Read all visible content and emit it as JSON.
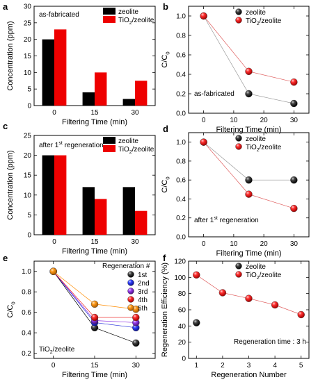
{
  "colors": {
    "zeolite": "#000000",
    "tio2": "#ee0000",
    "link_zeolite": "#999999",
    "link_tio2": "#e06060",
    "regen_1st": "#000000",
    "regen_2nd": "#1f2bd8",
    "regen_3rd": "#8a2be2",
    "regen_4th": "#ee1b1b",
    "regen_5th": "#ff8c00"
  },
  "chart_data": [
    {
      "panel": "a",
      "type": "bar",
      "annotation": "as-fabricated",
      "xlabel": "Filtering Time (min)",
      "ylabel": "Concentration (ppm)",
      "categories": [
        "0",
        "15",
        "30"
      ],
      "ylim": [
        0,
        30
      ],
      "yticks": [
        "0",
        "5",
        "10",
        "15",
        "20",
        "25",
        "30"
      ],
      "legend_position": "top-right",
      "series": [
        {
          "key": "zeolite",
          "name": "zeolite",
          "values": [
            20,
            4,
            2
          ]
        },
        {
          "key": "tio2",
          "name": "TiO2/zeolite",
          "name_main": "TiO",
          "name_sub": "2",
          "name_rest": "/zeolite",
          "values": [
            23,
            10,
            7.5
          ]
        }
      ]
    },
    {
      "panel": "b",
      "type": "scatter",
      "annotation": "as-fabricated",
      "xlabel": "Filtering Time (min)",
      "ylabel": "C/C0",
      "ylabel_main": "C/C",
      "ylabel_sub": "0",
      "x": [
        0,
        15,
        30
      ],
      "xticks": [
        "0",
        "10",
        "20",
        "30"
      ],
      "xlim": [
        -5,
        35
      ],
      "ylim": [
        0,
        1.1
      ],
      "yticks": [
        "0.0",
        "0.2",
        "0.4",
        "0.6",
        "0.8",
        "1.0"
      ],
      "legend_position": "top-right",
      "series": [
        {
          "key": "zeolite",
          "name": "zeolite",
          "values": [
            1.0,
            0.2,
            0.1
          ]
        },
        {
          "key": "tio2",
          "name": "TiO2/zeolite",
          "name_main": "TiO",
          "name_sub": "2",
          "name_rest": "/zeolite",
          "values": [
            1.0,
            0.43,
            0.32
          ]
        }
      ]
    },
    {
      "panel": "c",
      "type": "bar",
      "annotation": "after 1st regeneration",
      "annotation_main": "after 1",
      "annotation_sup": "st",
      "annotation_rest": " regeneration",
      "xlabel": "Filtering Time (min)",
      "ylabel": "Concentration (ppm)",
      "categories": [
        "0",
        "15",
        "30"
      ],
      "ylim": [
        0,
        25
      ],
      "yticks": [
        "0",
        "5",
        "10",
        "15",
        "20",
        "25"
      ],
      "legend_position": "top-right",
      "series": [
        {
          "key": "zeolite",
          "name": "zeolite",
          "values": [
            20,
            12,
            12
          ]
        },
        {
          "key": "tio2",
          "name": "TiO2/zeolite",
          "name_main": "TiO",
          "name_sub": "2",
          "name_rest": "/zeolite",
          "values": [
            20,
            9,
            6
          ]
        }
      ]
    },
    {
      "panel": "d",
      "type": "scatter",
      "annotation": "after 1st regeneration",
      "annotation_main": "after 1",
      "annotation_sup": "st",
      "annotation_rest": " regeneration",
      "xlabel": "Filtering Time (min)",
      "ylabel": "C/C0",
      "ylabel_main": "C/C",
      "ylabel_sub": "0",
      "x": [
        0,
        15,
        30
      ],
      "xticks": [
        "0",
        "10",
        "20",
        "30"
      ],
      "xlim": [
        -5,
        35
      ],
      "ylim": [
        0,
        1.1
      ],
      "yticks": [
        "0.0",
        "0.2",
        "0.4",
        "0.6",
        "0.8",
        "1.0"
      ],
      "legend_position": "top-right",
      "series": [
        {
          "key": "zeolite",
          "name": "zeolite",
          "values": [
            1.0,
            0.6,
            0.6
          ]
        },
        {
          "key": "tio2",
          "name": "TiO2/zeolite",
          "name_main": "TiO",
          "name_sub": "2",
          "name_rest": "/zeolite",
          "values": [
            1.0,
            0.45,
            0.3
          ]
        }
      ]
    },
    {
      "panel": "e",
      "type": "scatter",
      "annotation": "TiO2/zeolite",
      "annotation_main": "TiO",
      "annotation_sub": "2",
      "annotation_rest": "/zeolite",
      "legend_title": "Regeneration #",
      "xlabel": "Filtering Time (min)",
      "ylabel": "C/C0",
      "ylabel_main": "C/C",
      "ylabel_sub": "0",
      "x": [
        0,
        15,
        30
      ],
      "xticks": [
        "0",
        "15",
        "30"
      ],
      "xlim": [
        -7,
        37
      ],
      "ylim": [
        0.15,
        1.1
      ],
      "yticks": [
        "0.2",
        "0.4",
        "0.6",
        "0.8",
        "1.0"
      ],
      "legend_position": "top-right",
      "series": [
        {
          "key": "regen_1st",
          "name": "1st",
          "values": [
            1.0,
            0.45,
            0.3
          ]
        },
        {
          "key": "regen_2nd",
          "name": "2nd",
          "values": [
            1.0,
            0.5,
            0.45
          ]
        },
        {
          "key": "regen_3rd",
          "name": "3rd",
          "values": [
            1.0,
            0.52,
            0.5
          ]
        },
        {
          "key": "regen_4th",
          "name": "4th",
          "values": [
            1.0,
            0.55,
            0.55
          ]
        },
        {
          "key": "regen_5th",
          "name": "5th",
          "values": [
            1.0,
            0.68,
            0.63
          ]
        }
      ]
    },
    {
      "panel": "f",
      "type": "scatter",
      "annotation": "Regeneration time : 3 h",
      "xlabel": "Regeneration Number",
      "ylabel": "Regeneration Efficiency (%)",
      "xticks": [
        "1",
        "2",
        "3",
        "4",
        "5"
      ],
      "xlim": [
        0.7,
        5.3
      ],
      "ylim": [
        0,
        120
      ],
      "yticks": [
        "0",
        "20",
        "40",
        "60",
        "80",
        "100",
        "120"
      ],
      "legend_position": "top-right",
      "series": [
        {
          "key": "zeolite",
          "name": "zeolite",
          "x": [
            1
          ],
          "values": [
            44
          ]
        },
        {
          "key": "tio2",
          "name": "TiO2/zeolite",
          "name_main": "TiO",
          "name_sub": "2",
          "name_rest": "/zeolite",
          "x": [
            1,
            2,
            3,
            4,
            5
          ],
          "values": [
            103,
            81,
            74,
            66,
            54
          ]
        }
      ]
    }
  ]
}
